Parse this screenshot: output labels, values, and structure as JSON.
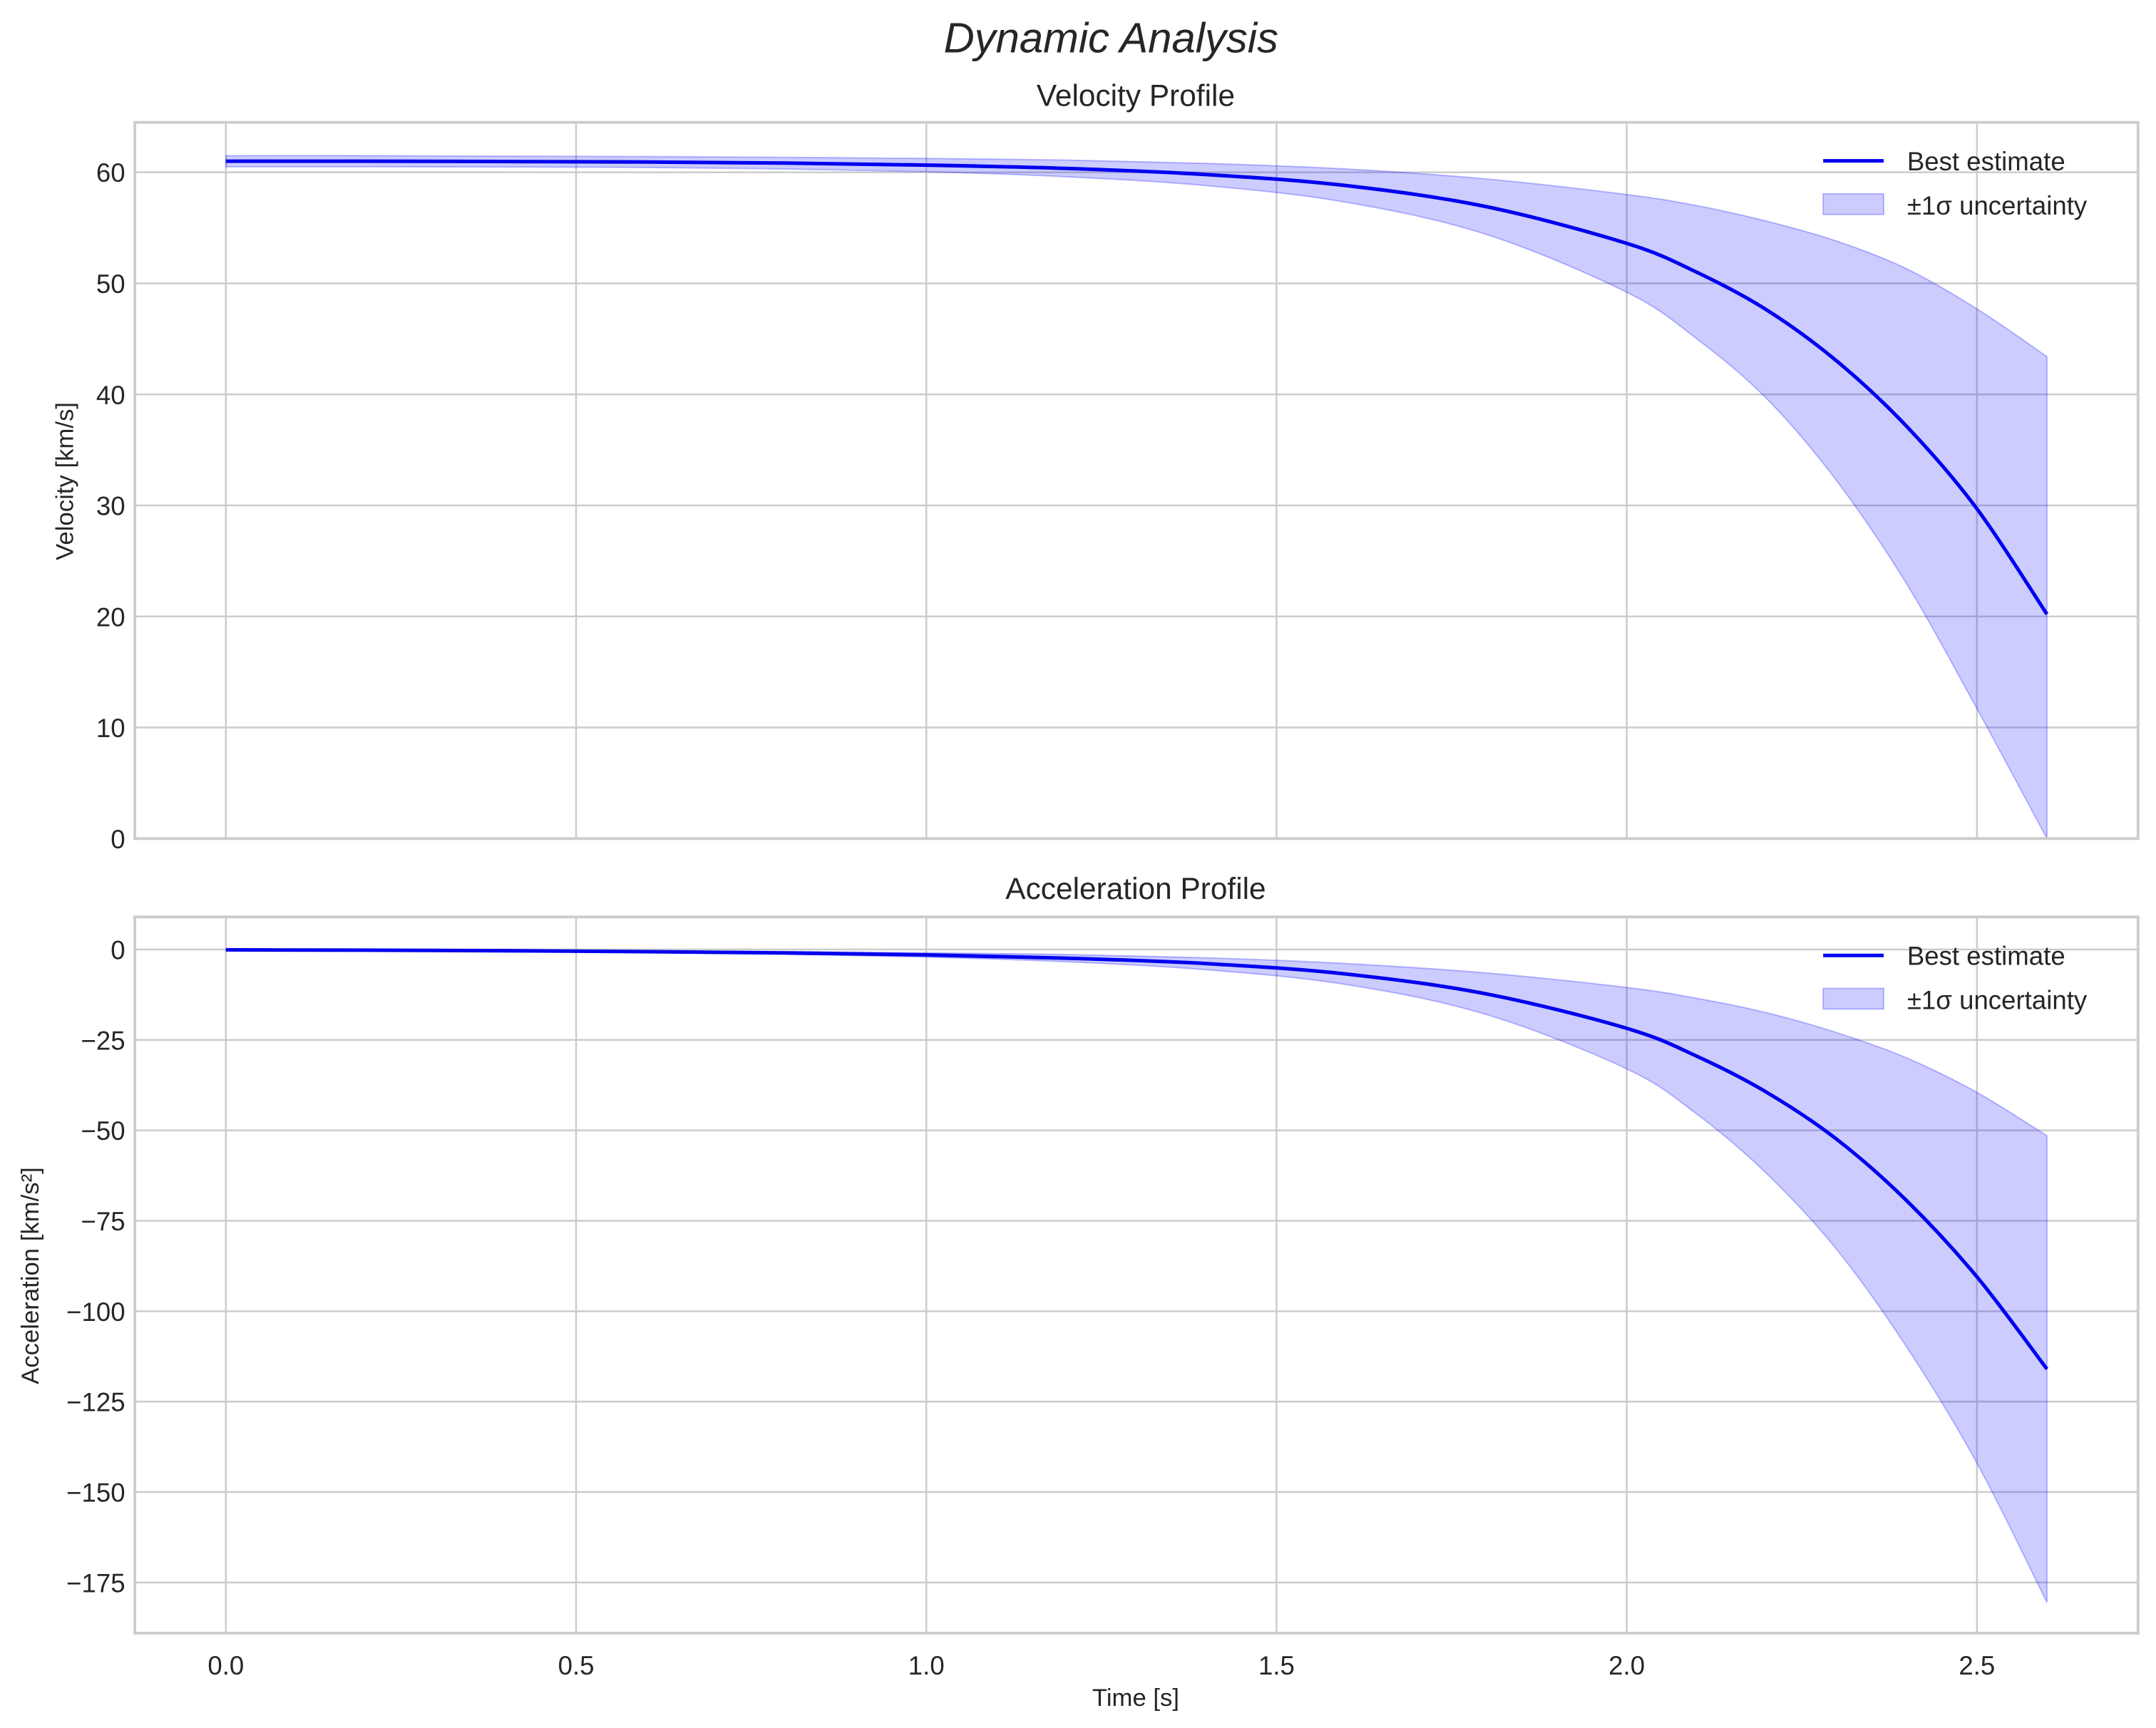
{
  "figure": {
    "suptitle": "Dynamic Analysis"
  },
  "chart_data": [
    {
      "type": "line",
      "title": "Velocity Profile",
      "xlabel": "",
      "ylabel": "Velocity [km/s]",
      "xlim": [
        -0.13,
        2.73
      ],
      "ylim": [
        0,
        64.5
      ],
      "xticks": [
        0.0,
        0.5,
        1.0,
        1.5,
        2.0,
        2.5
      ],
      "xtick_labels": [
        "0.0",
        "0.5",
        "1.0",
        "1.5",
        "2.0",
        "2.5"
      ],
      "yticks": [
        0,
        10,
        20,
        30,
        40,
        50,
        60
      ],
      "ytick_labels": [
        "0",
        "10",
        "20",
        "30",
        "40",
        "50",
        "60"
      ],
      "grid": true,
      "legend_position": "upper right",
      "legend": [
        "Best estimate",
        "±1σ uncertainty"
      ],
      "x": [
        0.0,
        0.2,
        0.4,
        0.6,
        0.8,
        1.0,
        1.2,
        1.4,
        1.6,
        1.8,
        2.0,
        2.1,
        2.2,
        2.3,
        2.4,
        2.5,
        2.6
      ],
      "series": [
        {
          "name": "Best estimate",
          "color": "#0000ee",
          "values": [
            61.0,
            61.0,
            60.97,
            60.93,
            60.83,
            60.65,
            60.35,
            59.8,
            58.8,
            56.9,
            53.6,
            51.0,
            47.6,
            43.0,
            37.1,
            29.7,
            20.2
          ]
        },
        {
          "name": "±1σ upper",
          "color": "#0000ff",
          "values": [
            61.5,
            61.5,
            61.45,
            61.42,
            61.35,
            61.25,
            61.1,
            60.8,
            60.3,
            59.4,
            58.0,
            57.0,
            55.6,
            53.8,
            51.3,
            47.7,
            43.4
          ]
        },
        {
          "name": "±1σ lower",
          "color": "#0000ff",
          "values": [
            60.5,
            60.5,
            60.48,
            60.44,
            60.3,
            60.05,
            59.6,
            58.8,
            57.3,
            54.4,
            49.2,
            45.0,
            39.6,
            32.2,
            22.9,
            11.7,
            0.0
          ]
        }
      ]
    },
    {
      "type": "line",
      "title": "Acceleration Profile",
      "xlabel": "Time [s]",
      "ylabel": "Acceleration [km/s²]",
      "xlim": [
        -0.13,
        2.73
      ],
      "ylim": [
        -189,
        9
      ],
      "xticks": [
        0.0,
        0.5,
        1.0,
        1.5,
        2.0,
        2.5
      ],
      "xtick_labels": [
        "0.0",
        "0.5",
        "1.0",
        "1.5",
        "2.0",
        "2.5"
      ],
      "yticks": [
        0,
        -25,
        -50,
        -75,
        -100,
        -125,
        -150,
        -175
      ],
      "ytick_labels": [
        "0",
        "−25",
        "−50",
        "−75",
        "−100",
        "−125",
        "−150",
        "−175"
      ],
      "grid": true,
      "legend_position": "upper right",
      "legend": [
        "Best estimate",
        "±1σ uncertainty"
      ],
      "x": [
        0.0,
        0.2,
        0.4,
        0.6,
        0.8,
        1.0,
        1.2,
        1.4,
        1.6,
        1.8,
        2.0,
        2.1,
        2.2,
        2.3,
        2.4,
        2.5,
        2.6
      ],
      "series": [
        {
          "name": "Best estimate",
          "color": "#0000ee",
          "values": [
            -0.1,
            -0.2,
            -0.35,
            -0.6,
            -0.95,
            -1.5,
            -2.4,
            -3.9,
            -6.8,
            -12.3,
            -21.8,
            -29.5,
            -39.5,
            -52.5,
            -69.5,
            -90.5,
            -116.0
          ]
        },
        {
          "name": "±1σ upper",
          "color": "#0000ff",
          "values": [
            -0.05,
            -0.1,
            -0.2,
            -0.35,
            -0.6,
            -0.9,
            -1.4,
            -2.3,
            -3.9,
            -6.5,
            -10.5,
            -13.5,
            -17.5,
            -23.0,
            -30.0,
            -39.5,
            -51.5
          ]
        },
        {
          "name": "±1σ lower",
          "color": "#0000ff",
          "values": [
            -0.15,
            -0.3,
            -0.5,
            -0.85,
            -1.3,
            -2.1,
            -3.4,
            -5.6,
            -9.7,
            -18.0,
            -33.0,
            -45.5,
            -62.0,
            -83.0,
            -110.0,
            -142.0,
            -180.5
          ]
        }
      ]
    }
  ],
  "colors": {
    "line": "#0000ee",
    "band_fill": "#0000ff",
    "band_alpha": 0.2,
    "grid": "#cccccc",
    "text": "#262626"
  }
}
